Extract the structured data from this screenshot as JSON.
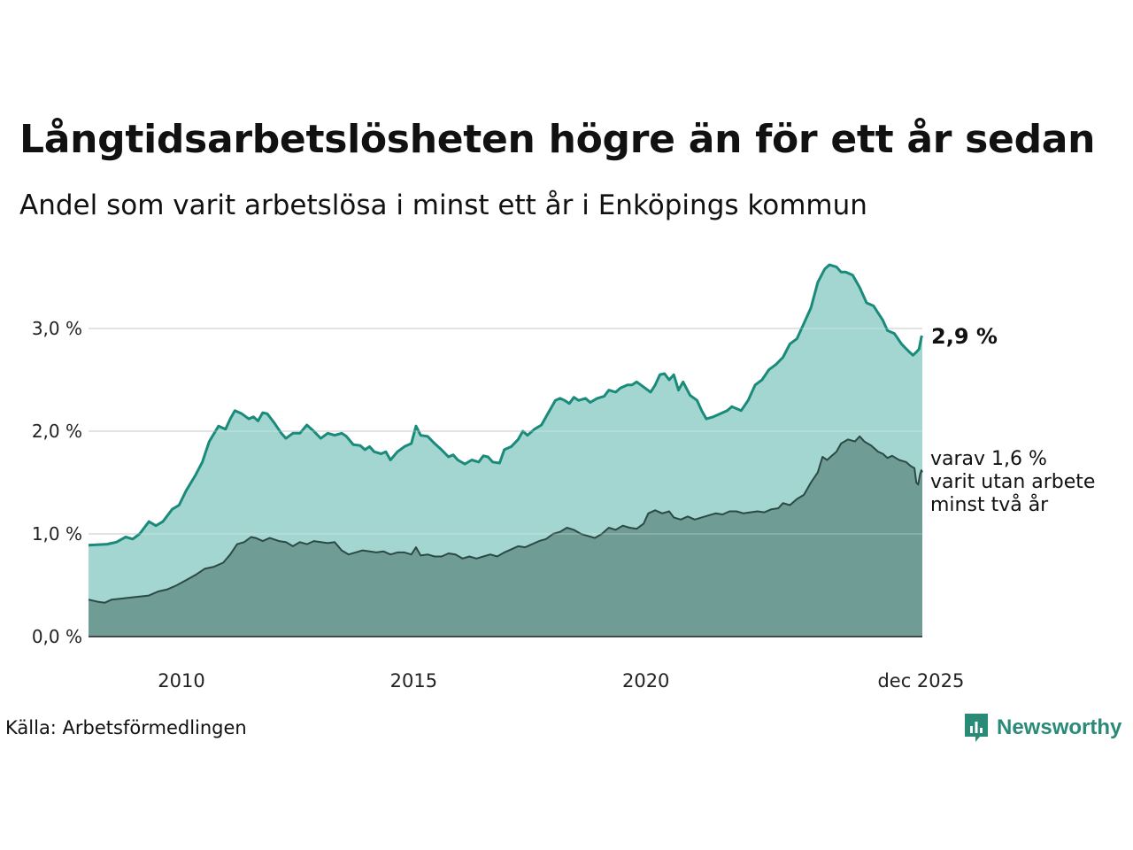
{
  "header": {
    "title": "Långtidsarbetslösheten högre än för ett år sedan",
    "subtitle": "Andel som varit arbetslösa i minst ett år i Enköpings kommun"
  },
  "footer": {
    "source": "Källa: Arbetsförmedlingen",
    "brand": "Newsworthy"
  },
  "colors": {
    "series1_line": "#1a8a7a",
    "series1_fill": "#a3d6d0",
    "series2_line": "#2c4a44",
    "series2_fill": "#6f9d95",
    "grid": "#dddddd",
    "axis": "#222222"
  },
  "chart_data": {
    "type": "area",
    "title": "Långtidsarbetslösheten högre än för ett år sedan",
    "subtitle": "Andel som varit arbetslösa i minst ett år i Enköpings kommun",
    "xlabel": "",
    "ylabel": "",
    "xlim": [
      2008.0,
      2025.95
    ],
    "ylim": [
      0,
      3.7
    ],
    "grid": true,
    "y_ticks": [
      {
        "value": 0,
        "label": "0,0 %"
      },
      {
        "value": 1,
        "label": "1,0 %"
      },
      {
        "value": 2,
        "label": "2,0 %"
      },
      {
        "value": 3,
        "label": "3,0 %"
      }
    ],
    "x_ticks": [
      {
        "value": 2010,
        "label": "2010"
      },
      {
        "value": 2015,
        "label": "2015"
      },
      {
        "value": 2020,
        "label": "2020"
      },
      {
        "value": 2025.92,
        "label": "dec 2025"
      }
    ],
    "series": [
      {
        "name": "minst ett år",
        "end_label": "2,9 %",
        "points": [
          [
            2008.0,
            0.89
          ],
          [
            2008.4,
            0.9
          ],
          [
            2008.6,
            0.92
          ],
          [
            2008.8,
            0.97
          ],
          [
            2008.95,
            0.95
          ],
          [
            2009.1,
            1.0
          ],
          [
            2009.3,
            1.12
          ],
          [
            2009.45,
            1.08
          ],
          [
            2009.6,
            1.12
          ],
          [
            2009.8,
            1.24
          ],
          [
            2009.95,
            1.28
          ],
          [
            2010.1,
            1.42
          ],
          [
            2010.3,
            1.57
          ],
          [
            2010.45,
            1.7
          ],
          [
            2010.6,
            1.9
          ],
          [
            2010.8,
            2.05
          ],
          [
            2010.95,
            2.02
          ],
          [
            2011.05,
            2.12
          ],
          [
            2011.15,
            2.2
          ],
          [
            2011.3,
            2.17
          ],
          [
            2011.45,
            2.12
          ],
          [
            2011.55,
            2.14
          ],
          [
            2011.65,
            2.1
          ],
          [
            2011.75,
            2.18
          ],
          [
            2011.85,
            2.17
          ],
          [
            2012.0,
            2.08
          ],
          [
            2012.15,
            1.98
          ],
          [
            2012.25,
            1.93
          ],
          [
            2012.4,
            1.98
          ],
          [
            2012.55,
            1.98
          ],
          [
            2012.7,
            2.06
          ],
          [
            2012.85,
            2.0
          ],
          [
            2013.0,
            1.93
          ],
          [
            2013.15,
            1.98
          ],
          [
            2013.3,
            1.96
          ],
          [
            2013.45,
            1.98
          ],
          [
            2013.55,
            1.95
          ],
          [
            2013.7,
            1.87
          ],
          [
            2013.85,
            1.86
          ],
          [
            2013.95,
            1.82
          ],
          [
            2014.05,
            1.85
          ],
          [
            2014.15,
            1.8
          ],
          [
            2014.3,
            1.78
          ],
          [
            2014.4,
            1.8
          ],
          [
            2014.5,
            1.72
          ],
          [
            2014.65,
            1.8
          ],
          [
            2014.8,
            1.85
          ],
          [
            2014.95,
            1.88
          ],
          [
            2015.05,
            2.05
          ],
          [
            2015.15,
            1.96
          ],
          [
            2015.3,
            1.95
          ],
          [
            2015.45,
            1.88
          ],
          [
            2015.6,
            1.82
          ],
          [
            2015.75,
            1.75
          ],
          [
            2015.85,
            1.77
          ],
          [
            2015.95,
            1.72
          ],
          [
            2016.1,
            1.68
          ],
          [
            2016.25,
            1.72
          ],
          [
            2016.4,
            1.7
          ],
          [
            2016.5,
            1.76
          ],
          [
            2016.6,
            1.75
          ],
          [
            2016.7,
            1.7
          ],
          [
            2016.85,
            1.69
          ],
          [
            2016.95,
            1.82
          ],
          [
            2017.1,
            1.85
          ],
          [
            2017.25,
            1.92
          ],
          [
            2017.35,
            2.0
          ],
          [
            2017.45,
            1.96
          ],
          [
            2017.6,
            2.02
          ],
          [
            2017.75,
            2.06
          ],
          [
            2017.9,
            2.18
          ],
          [
            2018.05,
            2.3
          ],
          [
            2018.15,
            2.32
          ],
          [
            2018.25,
            2.3
          ],
          [
            2018.35,
            2.27
          ],
          [
            2018.45,
            2.33
          ],
          [
            2018.55,
            2.3
          ],
          [
            2018.7,
            2.32
          ],
          [
            2018.8,
            2.28
          ],
          [
            2018.95,
            2.32
          ],
          [
            2019.1,
            2.34
          ],
          [
            2019.2,
            2.4
          ],
          [
            2019.35,
            2.38
          ],
          [
            2019.45,
            2.42
          ],
          [
            2019.6,
            2.45
          ],
          [
            2019.7,
            2.45
          ],
          [
            2019.8,
            2.48
          ],
          [
            2019.95,
            2.43
          ],
          [
            2020.1,
            2.38
          ],
          [
            2020.2,
            2.45
          ],
          [
            2020.3,
            2.55
          ],
          [
            2020.4,
            2.56
          ],
          [
            2020.5,
            2.5
          ],
          [
            2020.6,
            2.55
          ],
          [
            2020.7,
            2.4
          ],
          [
            2020.8,
            2.48
          ],
          [
            2020.95,
            2.35
          ],
          [
            2021.1,
            2.3
          ],
          [
            2021.2,
            2.2
          ],
          [
            2021.3,
            2.12
          ],
          [
            2021.45,
            2.14
          ],
          [
            2021.6,
            2.17
          ],
          [
            2021.75,
            2.2
          ],
          [
            2021.85,
            2.24
          ],
          [
            2021.95,
            2.22
          ],
          [
            2022.05,
            2.2
          ],
          [
            2022.2,
            2.3
          ],
          [
            2022.35,
            2.45
          ],
          [
            2022.5,
            2.5
          ],
          [
            2022.65,
            2.6
          ],
          [
            2022.8,
            2.65
          ],
          [
            2022.95,
            2.72
          ],
          [
            2023.1,
            2.85
          ],
          [
            2023.25,
            2.9
          ],
          [
            2023.4,
            3.05
          ],
          [
            2023.55,
            3.2
          ],
          [
            2023.7,
            3.45
          ],
          [
            2023.85,
            3.58
          ],
          [
            2023.95,
            3.62
          ],
          [
            2024.1,
            3.6
          ],
          [
            2024.2,
            3.55
          ],
          [
            2024.3,
            3.55
          ],
          [
            2024.45,
            3.52
          ],
          [
            2024.6,
            3.4
          ],
          [
            2024.75,
            3.25
          ],
          [
            2024.9,
            3.22
          ],
          [
            2025.0,
            3.15
          ],
          [
            2025.1,
            3.08
          ],
          [
            2025.2,
            2.98
          ],
          [
            2025.35,
            2.95
          ],
          [
            2025.5,
            2.85
          ],
          [
            2025.65,
            2.78
          ],
          [
            2025.75,
            2.74
          ],
          [
            2025.82,
            2.77
          ],
          [
            2025.88,
            2.8
          ],
          [
            2025.93,
            2.92
          ],
          [
            2025.95,
            2.91
          ]
        ]
      },
      {
        "name": "minst två år",
        "end_label": "varav 1,6 %\nvarit utan arbete\nminst två år",
        "points": [
          [
            2008.0,
            0.36
          ],
          [
            2008.2,
            0.34
          ],
          [
            2008.35,
            0.33
          ],
          [
            2008.5,
            0.36
          ],
          [
            2008.7,
            0.37
          ],
          [
            2008.9,
            0.38
          ],
          [
            2009.1,
            0.39
          ],
          [
            2009.3,
            0.4
          ],
          [
            2009.5,
            0.44
          ],
          [
            2009.7,
            0.46
          ],
          [
            2009.9,
            0.5
          ],
          [
            2010.1,
            0.55
          ],
          [
            2010.3,
            0.6
          ],
          [
            2010.5,
            0.66
          ],
          [
            2010.7,
            0.68
          ],
          [
            2010.9,
            0.72
          ],
          [
            2011.05,
            0.8
          ],
          [
            2011.2,
            0.9
          ],
          [
            2011.35,
            0.92
          ],
          [
            2011.5,
            0.97
          ],
          [
            2011.6,
            0.96
          ],
          [
            2011.75,
            0.93
          ],
          [
            2011.9,
            0.96
          ],
          [
            2012.1,
            0.93
          ],
          [
            2012.25,
            0.92
          ],
          [
            2012.4,
            0.88
          ],
          [
            2012.55,
            0.92
          ],
          [
            2012.7,
            0.9
          ],
          [
            2012.85,
            0.93
          ],
          [
            2013.0,
            0.92
          ],
          [
            2013.15,
            0.91
          ],
          [
            2013.3,
            0.92
          ],
          [
            2013.45,
            0.84
          ],
          [
            2013.6,
            0.8
          ],
          [
            2013.75,
            0.82
          ],
          [
            2013.9,
            0.84
          ],
          [
            2014.05,
            0.83
          ],
          [
            2014.2,
            0.82
          ],
          [
            2014.35,
            0.83
          ],
          [
            2014.5,
            0.8
          ],
          [
            2014.65,
            0.82
          ],
          [
            2014.8,
            0.82
          ],
          [
            2014.95,
            0.8
          ],
          [
            2015.05,
            0.87
          ],
          [
            2015.15,
            0.79
          ],
          [
            2015.3,
            0.8
          ],
          [
            2015.45,
            0.78
          ],
          [
            2015.6,
            0.78
          ],
          [
            2015.75,
            0.81
          ],
          [
            2015.9,
            0.8
          ],
          [
            2016.05,
            0.76
          ],
          [
            2016.2,
            0.78
          ],
          [
            2016.35,
            0.76
          ],
          [
            2016.5,
            0.78
          ],
          [
            2016.65,
            0.8
          ],
          [
            2016.8,
            0.78
          ],
          [
            2016.95,
            0.82
          ],
          [
            2017.1,
            0.85
          ],
          [
            2017.25,
            0.88
          ],
          [
            2017.4,
            0.87
          ],
          [
            2017.55,
            0.9
          ],
          [
            2017.7,
            0.93
          ],
          [
            2017.85,
            0.95
          ],
          [
            2018.0,
            1.0
          ],
          [
            2018.15,
            1.02
          ],
          [
            2018.3,
            1.06
          ],
          [
            2018.45,
            1.04
          ],
          [
            2018.6,
            1.0
          ],
          [
            2018.75,
            0.98
          ],
          [
            2018.9,
            0.96
          ],
          [
            2019.05,
            1.0
          ],
          [
            2019.2,
            1.06
          ],
          [
            2019.35,
            1.04
          ],
          [
            2019.5,
            1.08
          ],
          [
            2019.65,
            1.06
          ],
          [
            2019.8,
            1.05
          ],
          [
            2019.95,
            1.1
          ],
          [
            2020.05,
            1.2
          ],
          [
            2020.2,
            1.23
          ],
          [
            2020.35,
            1.2
          ],
          [
            2020.5,
            1.22
          ],
          [
            2020.6,
            1.16
          ],
          [
            2020.75,
            1.14
          ],
          [
            2020.9,
            1.17
          ],
          [
            2021.05,
            1.14
          ],
          [
            2021.2,
            1.16
          ],
          [
            2021.35,
            1.18
          ],
          [
            2021.5,
            1.2
          ],
          [
            2021.65,
            1.19
          ],
          [
            2021.8,
            1.22
          ],
          [
            2021.95,
            1.22
          ],
          [
            2022.1,
            1.2
          ],
          [
            2022.25,
            1.21
          ],
          [
            2022.4,
            1.22
          ],
          [
            2022.55,
            1.21
          ],
          [
            2022.7,
            1.24
          ],
          [
            2022.85,
            1.25
          ],
          [
            2022.95,
            1.3
          ],
          [
            2023.1,
            1.28
          ],
          [
            2023.25,
            1.34
          ],
          [
            2023.4,
            1.38
          ],
          [
            2023.55,
            1.5
          ],
          [
            2023.7,
            1.6
          ],
          [
            2023.8,
            1.75
          ],
          [
            2023.9,
            1.72
          ],
          [
            2024.0,
            1.76
          ],
          [
            2024.1,
            1.8
          ],
          [
            2024.2,
            1.88
          ],
          [
            2024.35,
            1.92
          ],
          [
            2024.5,
            1.9
          ],
          [
            2024.6,
            1.95
          ],
          [
            2024.7,
            1.9
          ],
          [
            2024.85,
            1.86
          ],
          [
            2025.0,
            1.8
          ],
          [
            2025.1,
            1.78
          ],
          [
            2025.2,
            1.74
          ],
          [
            2025.3,
            1.76
          ],
          [
            2025.45,
            1.72
          ],
          [
            2025.6,
            1.7
          ],
          [
            2025.7,
            1.66
          ],
          [
            2025.78,
            1.64
          ],
          [
            2025.82,
            1.5
          ],
          [
            2025.86,
            1.48
          ],
          [
            2025.9,
            1.58
          ],
          [
            2025.93,
            1.62
          ],
          [
            2025.95,
            1.6
          ]
        ]
      }
    ]
  }
}
